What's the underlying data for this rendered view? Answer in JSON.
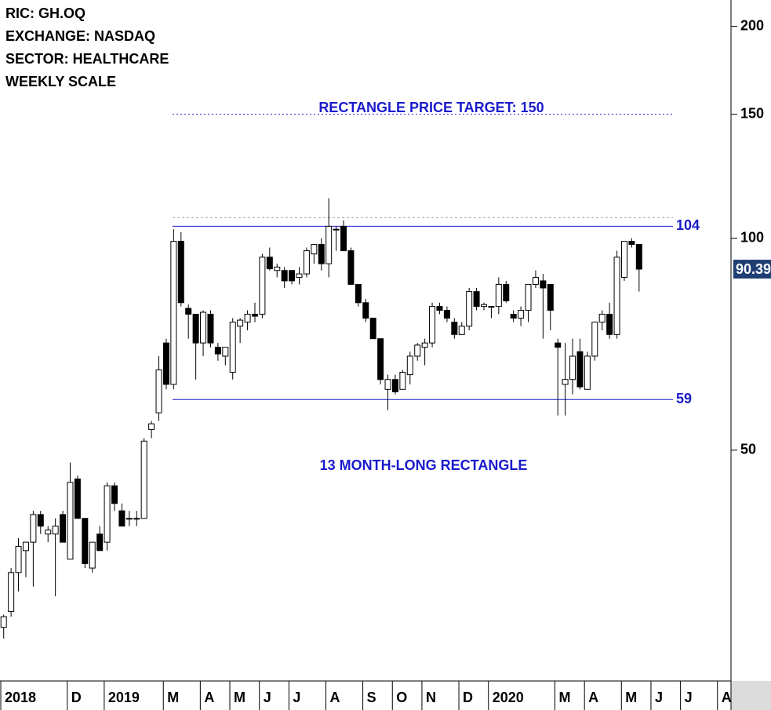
{
  "header": [
    "RIC: GH.OQ",
    "EXCHANGE: NASDAQ",
    "SECTOR: HEALTHCARE",
    "WEEKLY SCALE"
  ],
  "chart_data": {
    "type": "candlestick",
    "categories": [
      "2018",
      null,
      null,
      null,
      null,
      null,
      null,
      null,
      null,
      "D",
      null,
      null,
      null,
      null,
      "2019",
      null,
      null,
      null,
      null,
      null,
      null,
      null,
      "M",
      null,
      null,
      null,
      null,
      "A",
      null,
      null,
      null,
      "M",
      null,
      null,
      null,
      "J",
      null,
      null,
      null,
      "J",
      null,
      null,
      null,
      null,
      "A",
      null,
      null,
      null,
      null,
      "S",
      null,
      null,
      null,
      "O",
      null,
      null,
      null,
      "N",
      null,
      null,
      null,
      null,
      "D",
      null,
      null,
      null,
      "2020",
      null,
      null,
      null,
      null,
      null,
      null,
      null,
      null,
      "M",
      null,
      null,
      null,
      "A",
      null,
      null,
      null,
      null,
      "M",
      null,
      null,
      null,
      "J",
      null,
      null,
      null,
      "J",
      null,
      null,
      null,
      null,
      "A",
      null
    ],
    "open": [
      28,
      29.5,
      33.5,
      36,
      37,
      40.5,
      38,
      38,
      40.5,
      35,
      45.5,
      40,
      34,
      38,
      37,
      44.5,
      41,
      40,
      40,
      40,
      53.5,
      56.5,
      71,
      62,
      99,
      79.5,
      78,
      71,
      78,
      70,
      68,
      64.5,
      75,
      76,
      78,
      78,
      94,
      90,
      90,
      90,
      88,
      89,
      95,
      98,
      92,
      103,
      104,
      96,
      86,
      81,
      77,
      72,
      61,
      63,
      61,
      64,
      68,
      70,
      71,
      80,
      79,
      76,
      73,
      75,
      84,
      80,
      80,
      80,
      86,
      78,
      77,
      79,
      86,
      87,
      86,
      71,
      62,
      63,
      69,
      61,
      68,
      76,
      78,
      73,
      88,
      99,
      98,
      null,
      null,
      null,
      null,
      null,
      null,
      null,
      null,
      null,
      null,
      null,
      null
    ],
    "high": [
      29.2,
      34,
      37.5,
      37,
      41,
      41,
      39,
      40,
      41,
      48,
      46,
      40,
      37,
      39,
      45,
      45,
      42,
      41,
      41,
      52,
      55,
      68,
      72,
      103,
      102,
      80.5,
      78,
      79,
      79,
      71,
      70,
      77,
      77,
      79,
      81,
      95,
      97,
      92,
      91,
      90,
      91,
      97,
      98,
      100,
      114,
      104,
      106,
      97,
      86,
      82,
      77,
      72,
      64,
      64,
      65,
      69,
      71,
      72,
      81,
      81,
      80,
      77,
      76,
      85,
      85,
      81,
      80,
      88,
      87,
      79,
      80,
      86,
      90,
      89,
      86,
      72,
      71,
      72,
      72,
      69,
      76,
      79,
      81,
      96,
      99,
      100,
      98,
      null,
      null,
      null,
      null,
      null,
      null,
      null,
      null,
      null,
      null,
      null,
      null
    ],
    "low": [
      27,
      29,
      31.5,
      33,
      32,
      38,
      37,
      31,
      37,
      35,
      40,
      34,
      33.5,
      36,
      36,
      41,
      39,
      39,
      39,
      40,
      52,
      55,
      61,
      61,
      80,
      72,
      63,
      68,
      70,
      67,
      66,
      63,
      71,
      74,
      76,
      77,
      90,
      88,
      85,
      86,
      86,
      88,
      92,
      90,
      88,
      96,
      96,
      86,
      80,
      76,
      72,
      62,
      57,
      60,
      61,
      62,
      67,
      66,
      70,
      78,
      76,
      72,
      73,
      74,
      79,
      79,
      77,
      78,
      81,
      76,
      75,
      76,
      85,
      72,
      74,
      56,
      56,
      60,
      61,
      61,
      67,
      74,
      72,
      72,
      87,
      97,
      84,
      null,
      null,
      null,
      null,
      null,
      null,
      null,
      null,
      null,
      null,
      null,
      null
    ],
    "close": [
      29,
      33.5,
      36.5,
      37,
      40.5,
      39,
      38.5,
      39,
      37,
      45,
      40,
      34.5,
      37,
      36,
      44.5,
      42,
      39,
      40,
      40,
      51.5,
      54.5,
      65,
      62,
      99,
      81,
      78,
      71,
      78.5,
      71,
      68.5,
      70,
      76,
      76.5,
      78,
      77.5,
      94,
      90.5,
      91,
      87,
      87,
      89,
      96,
      98,
      92,
      104,
      103,
      96,
      86,
      81,
      77,
      72,
      63,
      63,
      60.5,
      64.5,
      68,
      70.5,
      71,
      80,
      79,
      77,
      73,
      75,
      84,
      80,
      80.5,
      80,
      86,
      81.5,
      77,
      79,
      86,
      88,
      85,
      79,
      70,
      63,
      68,
      61.5,
      68,
      76,
      78,
      73,
      94,
      99,
      98,
      90.39,
      null,
      null,
      null,
      null,
      null,
      null,
      null,
      null,
      null,
      null,
      null,
      null
    ],
    "ylim": [
      23.5,
      218
    ],
    "log_scale": true,
    "yticks": [
      50,
      100,
      150,
      200
    ],
    "last_price": 90.39,
    "levels": [
      104,
      59
    ],
    "target": 150,
    "target_label": "RECTANGLE PRICE TARGET: 150",
    "dotted_level": 107,
    "annotation": "13 MONTH-LONG RECTANGLE"
  }
}
